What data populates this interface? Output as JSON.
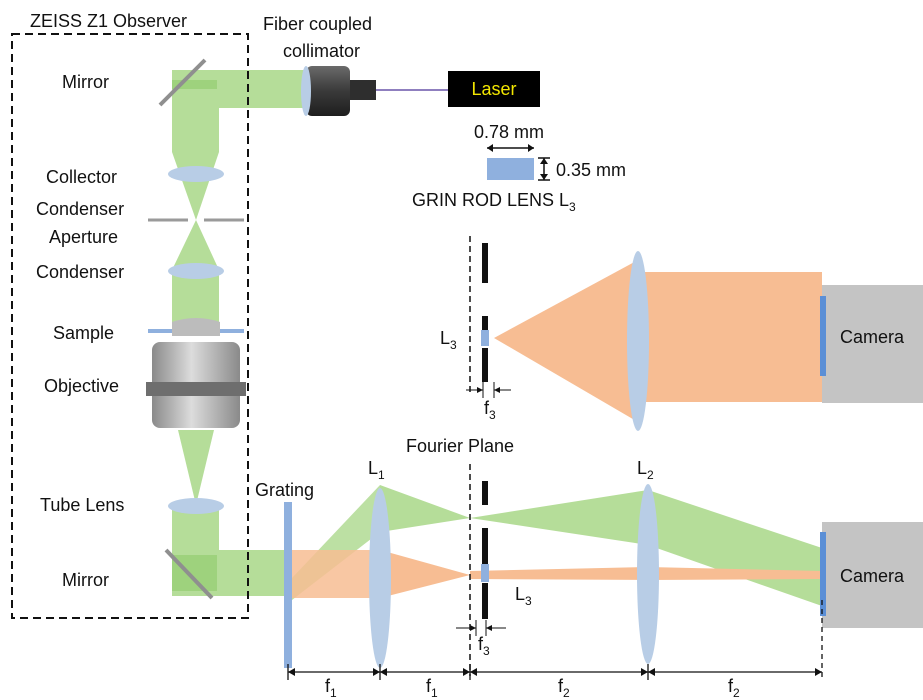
{
  "title": "ZEISS Z1 Observer",
  "labels": {
    "mirror_top": "Mirror",
    "collector": "Collector",
    "condenser_aperture_line1": "Condenser",
    "condenser_aperture_line2": "Aperture",
    "condenser": "Condenser",
    "sample": "Sample",
    "objective": "Objective",
    "tube_lens": "Tube Lens",
    "mirror_bottom": "Mirror",
    "fiber_line1": "Fiber coupled",
    "fiber_line2": "collimator",
    "laser": "Laser",
    "grin_width": "0.78 mm",
    "grin_height": "0.35 mm",
    "grin_caption": "GRIN ROD LENS L",
    "grin_caption_sub": "3",
    "l3_upper": "L",
    "l3_upper_sub": "3",
    "f3_upper": "f",
    "f3_upper_sub": "3",
    "camera_upper": "Camera",
    "fourier_plane": "Fourier Plane",
    "grating": "Grating",
    "l1": "L",
    "l1_sub": "1",
    "l2": "L",
    "l2_sub": "2",
    "l3_lower": "L",
    "l3_lower_sub": "3",
    "f3_lower": "f",
    "f3_lower_sub": "3",
    "camera_lower": "Camera",
    "dim_f1a": "f",
    "dim_f1a_sub": "1",
    "dim_f1b": "f",
    "dim_f1b_sub": "1",
    "dim_f2a": "f",
    "dim_f2a_sub": "2",
    "dim_f2b": "f",
    "dim_f2b_sub": "2"
  },
  "colors": {
    "beam_green": "#b5dd99",
    "beam_orange": "#f7bd93",
    "lens_blue": "#b8cde6",
    "laser_box": "#000000",
    "laser_text": "#f2e600",
    "camera_gray": "#c4c4c4"
  }
}
